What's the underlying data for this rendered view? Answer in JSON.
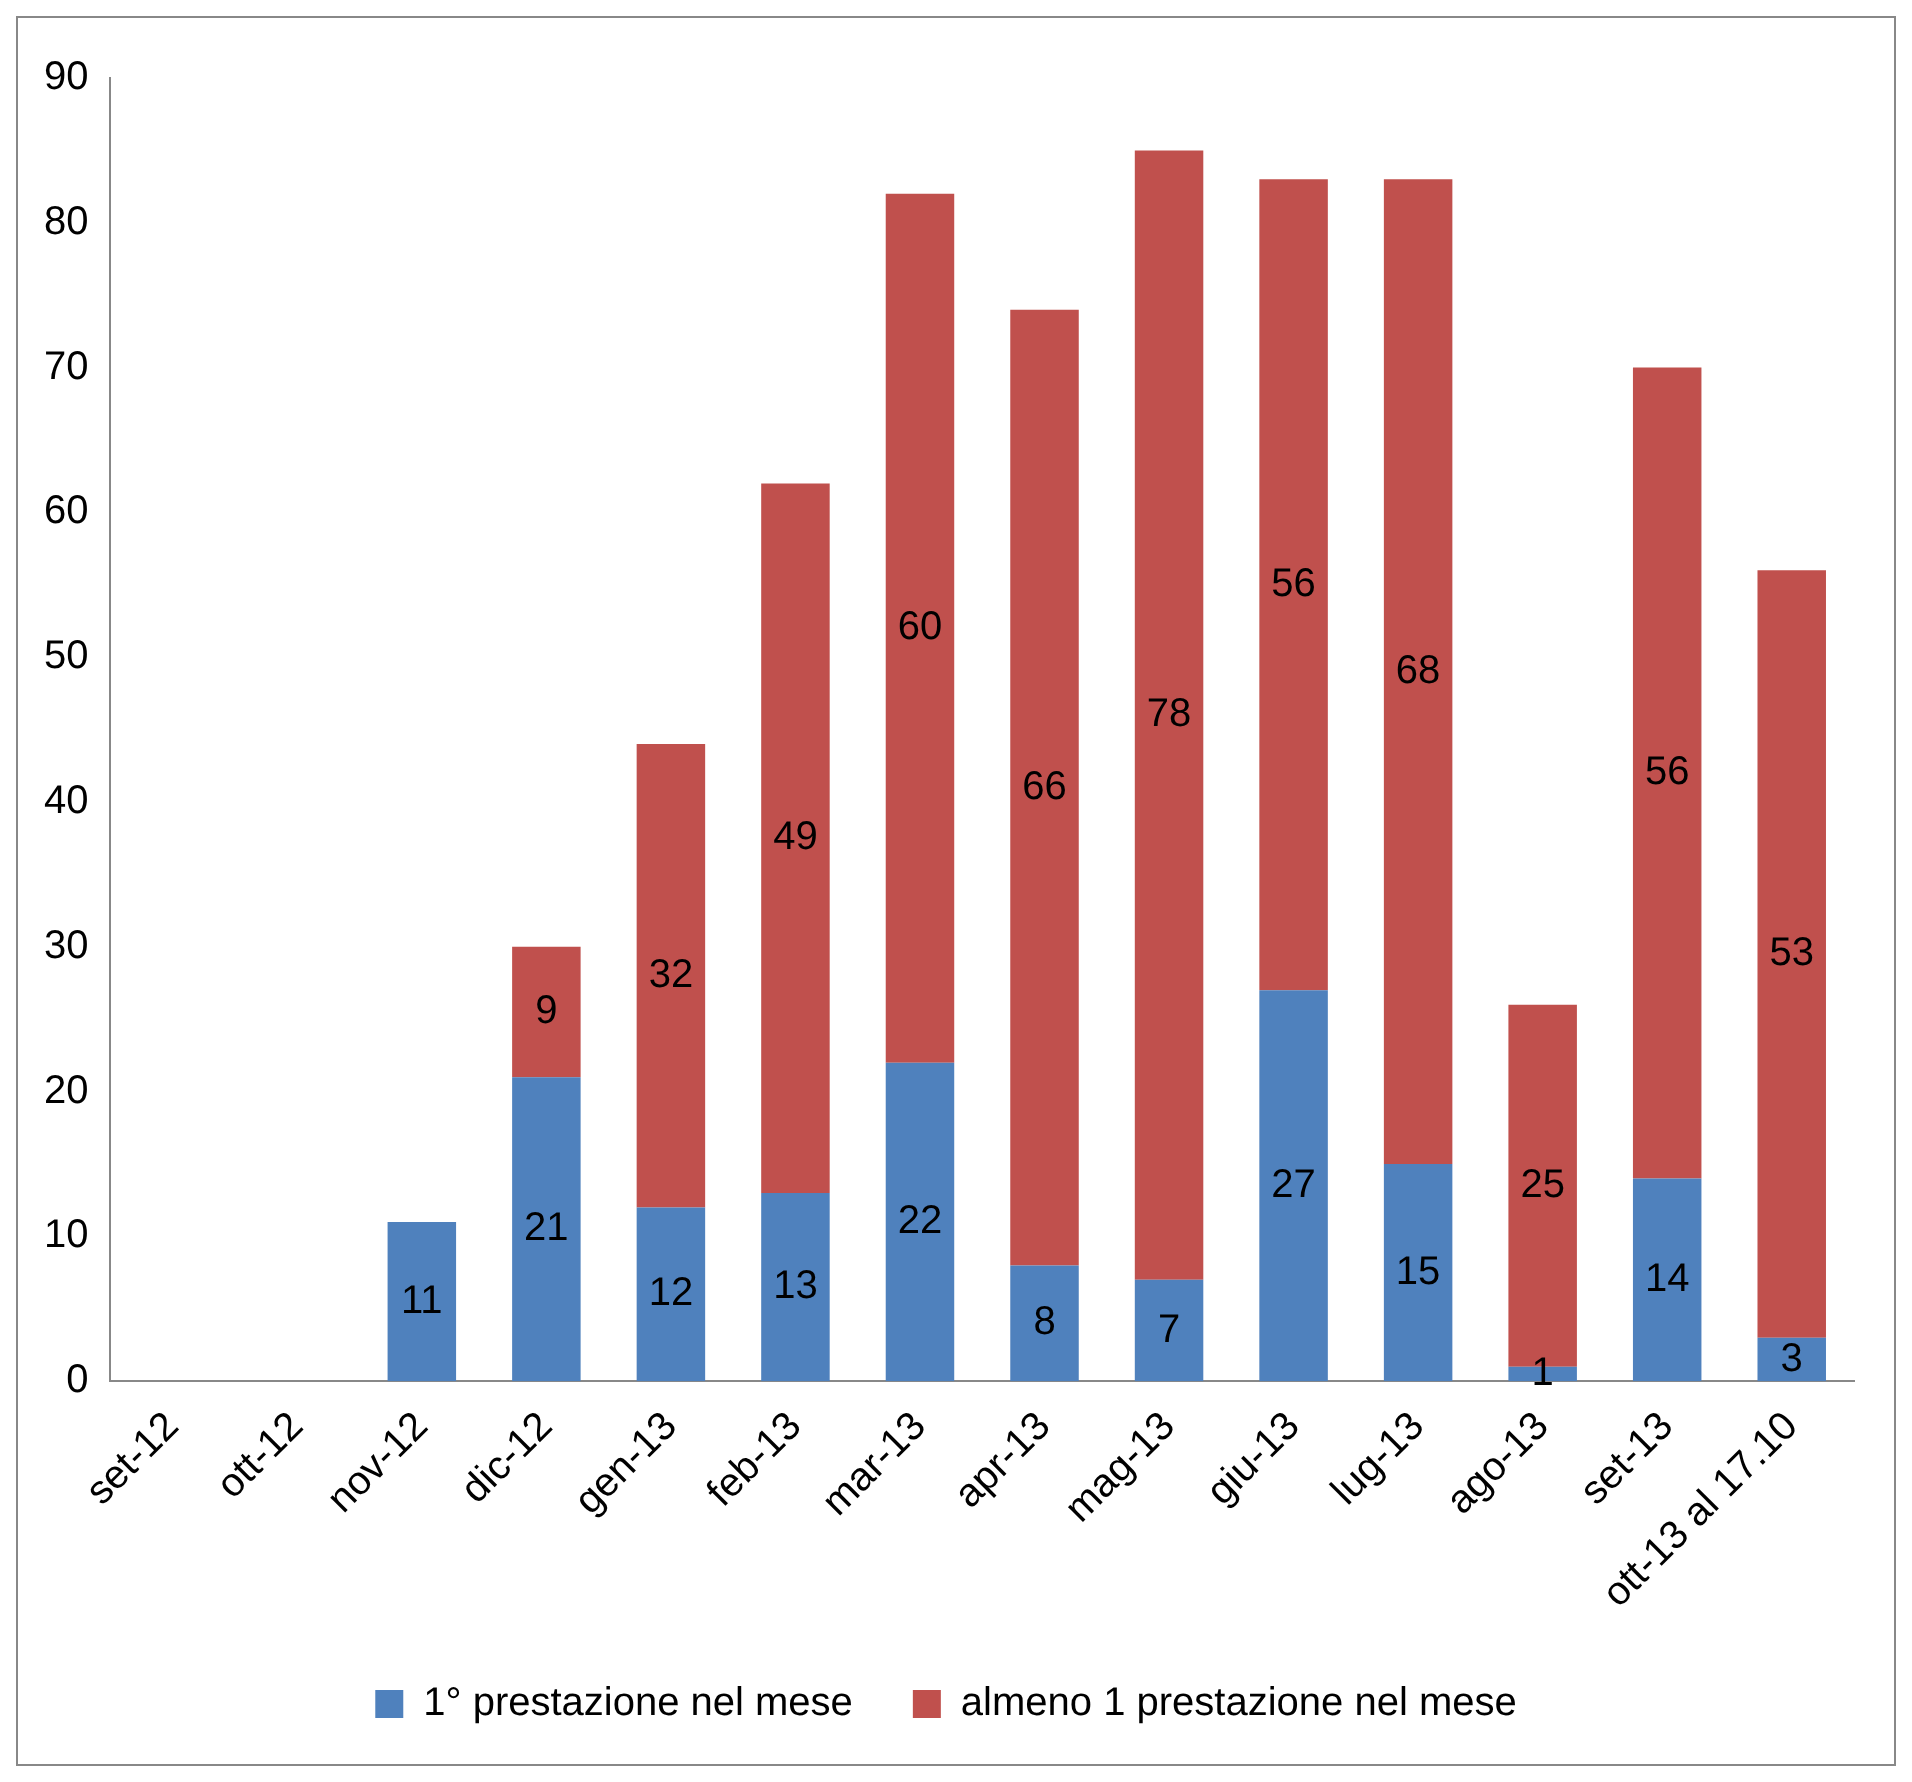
{
  "chart_data": {
    "type": "bar",
    "stacked": true,
    "categories": [
      "set-12",
      "ott-12",
      "nov-12",
      "dic-12",
      "gen-13",
      "feb-13",
      "mar-13",
      "apr-13",
      "mag-13",
      "giu-13",
      "lug-13",
      "ago-13",
      "set-13",
      "ott-13 al 17.10"
    ],
    "series": [
      {
        "name": "1° prestazione nel mese",
        "color": "#4f81bd",
        "values": [
          null,
          null,
          11,
          21,
          12,
          13,
          22,
          8,
          7,
          27,
          15,
          1,
          14,
          3
        ]
      },
      {
        "name": "almeno 1 prestazione nel mese",
        "color": "#c0504d",
        "values": [
          null,
          null,
          null,
          9,
          32,
          49,
          60,
          66,
          78,
          56,
          68,
          25,
          56,
          53
        ]
      }
    ],
    "ylim": [
      0,
      90
    ],
    "yticks": [
      0,
      10,
      20,
      30,
      40,
      50,
      60,
      70,
      80,
      90
    ],
    "grid": false,
    "legend": "bottom",
    "data_labels": true
  }
}
